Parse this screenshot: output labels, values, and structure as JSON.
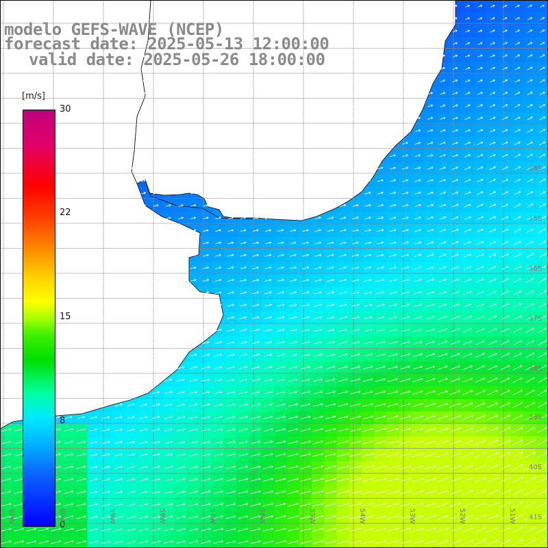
{
  "title": {
    "line1": "modelo GEFS-WAVE (NCEP)",
    "line2": "forecast date: 2025-05-13 12:00:00",
    "line3": "valid date: 2025-05-26 18:00:00"
  },
  "colorbar": {
    "unit": "[m/s]",
    "min": 0,
    "max": 30,
    "tick_labels": [
      "30",
      "22",
      "15",
      "8",
      "0"
    ],
    "tick_values": [
      30,
      22,
      15,
      8,
      0
    ]
  },
  "lat_labels": [
    "34S",
    "35S",
    "36S",
    "37S",
    "38S",
    "39S",
    "40S",
    "41S"
  ],
  "lon_labels": [
    "61W",
    "60W",
    "59W",
    "58W",
    "57W",
    "56W",
    "55W",
    "54W",
    "53W",
    "52W",
    "51W"
  ],
  "field": {
    "variable": "wind speed",
    "wind_direction": "towards east-northeast (from west-southwest)",
    "max_region_speed_ms": 15,
    "coast_speed_ms": 3
  }
}
